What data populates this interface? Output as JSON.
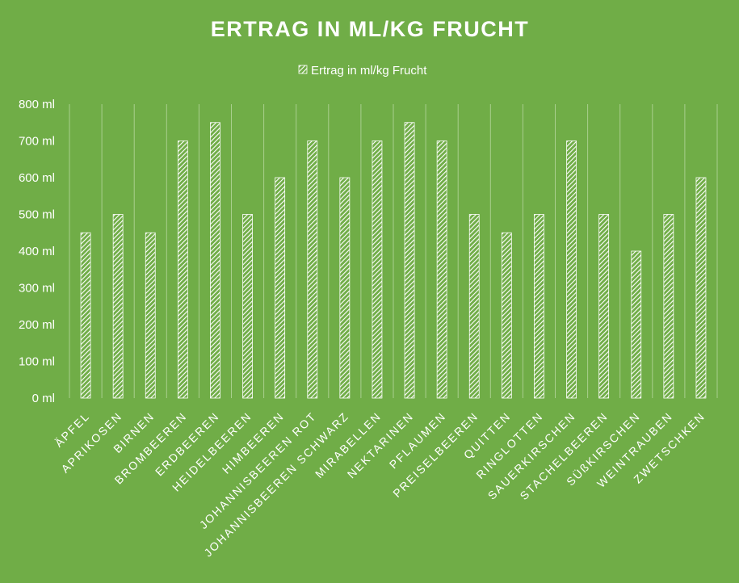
{
  "chart_data": {
    "type": "bar",
    "title": "ERTRAG IN ML/KG FRUCHT",
    "legend": {
      "position": "top",
      "entries": [
        "Ertrag in ml/kg Frucht"
      ]
    },
    "categories": [
      "ÄPFEL",
      "APRIKOSEN",
      "BIRNEN",
      "BROMBEEREN",
      "ERDBEEREN",
      "HEIDELBEEREN",
      "HIMBEEREN",
      "JOHANNISBEEREN ROT",
      "JOHANNISBEEREN SCHWARZ",
      "MIRABELLEN",
      "NEKTARINEN",
      "PFLAUMEN",
      "PREISELBEEREN",
      "QUITTEN",
      "RINGLOTTEN",
      "SAUERKIRSCHEN",
      "STACHELBEEREN",
      "SÜßKIRSCHEN",
      "WEINTRAUBEN",
      "ZWETSCHKEN"
    ],
    "series": [
      {
        "name": "Ertrag in ml/kg Frucht",
        "values": [
          450,
          500,
          450,
          700,
          750,
          500,
          600,
          700,
          600,
          700,
          750,
          700,
          500,
          450,
          500,
          700,
          500,
          400,
          500,
          600
        ]
      }
    ],
    "ylim": [
      0,
      800
    ],
    "yticks": [
      "0 ml",
      "100 ml",
      "200 ml",
      "300 ml",
      "400 ml",
      "500 ml",
      "600 ml",
      "700 ml",
      "800 ml"
    ],
    "grid": {
      "vertical": true,
      "horizontal": false
    },
    "colors": {
      "background": "#70ad47",
      "bar": "#ffffff",
      "grid": "#a9cf8e"
    }
  }
}
